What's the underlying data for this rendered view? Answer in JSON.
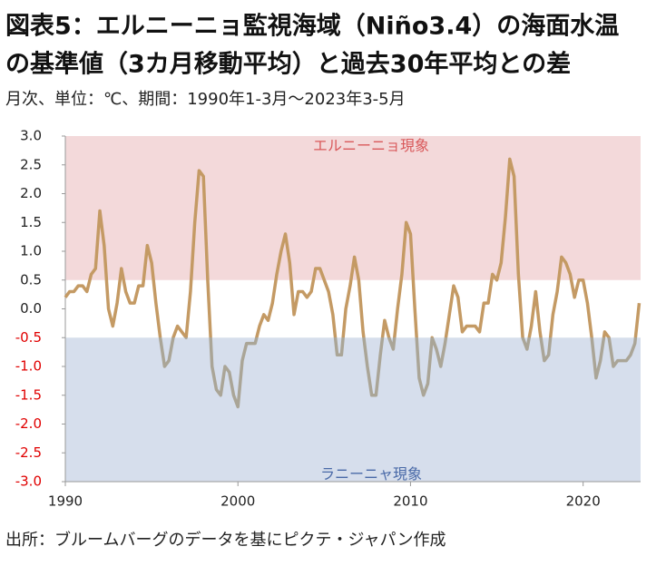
{
  "chart_data": {
    "type": "line",
    "title": [
      "図表5：エルニーニョ監視海域（Niño3.4）の海面水温",
      "の基準値（3カ月移動平均）と過去30年平均との差"
    ],
    "subtitle": "月次、単位：℃、期間：1990年1-3月～2023年3-5月",
    "source": "出所：ブルームバーグのデータを基にピクテ・ジャパン作成",
    "xlim": [
      1990,
      2023.33
    ],
    "xticks": [
      1990,
      2000,
      2010,
      2020
    ],
    "ylim": [
      -3,
      3
    ],
    "yticks": [
      {
        "value": 3,
        "label": "3.0"
      },
      2.5,
      {
        "value": 2,
        "label": "2.0"
      },
      1.5,
      {
        "value": 1,
        "label": "1.0"
      },
      0.5,
      {
        "value": 0,
        "label": "0.0"
      },
      -0.5,
      {
        "value": -1,
        "label": "-1.0"
      },
      -1.5,
      {
        "value": -2,
        "label": "-2.0"
      },
      -2.5,
      {
        "value": -3,
        "label": "-3.0"
      }
    ],
    "negative_tick_color": "#e00000",
    "grid": false,
    "bands": [
      {
        "label": "エルニーニョ現象",
        "from": 0.5,
        "to": 3,
        "color": "#f3d9da",
        "label_color": "#d9595b"
      },
      {
        "label": "ラニーニャ現象",
        "from": -3,
        "to": -0.5,
        "color": "#d6deec",
        "label_color": "#4a6aa8"
      }
    ],
    "line_color": "#c49a64",
    "below_band_color": "#aaa597",
    "x": [
      1990,
      1990.25,
      1990.5,
      1990.75,
      1991,
      1991.25,
      1991.5,
      1991.75,
      1992,
      1992.25,
      1992.5,
      1992.75,
      1993,
      1993.25,
      1993.5,
      1993.75,
      1994,
      1994.25,
      1994.5,
      1994.75,
      1995,
      1995.25,
      1995.5,
      1995.75,
      1996,
      1996.25,
      1996.5,
      1996.75,
      1997,
      1997.25,
      1997.5,
      1997.75,
      1998,
      1998.25,
      1998.5,
      1998.75,
      1999,
      1999.25,
      1999.5,
      1999.75,
      2000,
      2000.25,
      2000.5,
      2000.75,
      2001,
      2001.25,
      2001.5,
      2001.75,
      2002,
      2002.25,
      2002.5,
      2002.75,
      2003,
      2003.25,
      2003.5,
      2003.75,
      2004,
      2004.25,
      2004.5,
      2004.75,
      2005,
      2005.25,
      2005.5,
      2005.75,
      2006,
      2006.25,
      2006.5,
      2006.75,
      2007,
      2007.25,
      2007.5,
      2007.75,
      2008,
      2008.25,
      2008.5,
      2008.75,
      2009,
      2009.25,
      2009.5,
      2009.75,
      2010,
      2010.25,
      2010.5,
      2010.75,
      2011,
      2011.25,
      2011.5,
      2011.75,
      2012,
      2012.25,
      2012.5,
      2012.75,
      2013,
      2013.25,
      2013.5,
      2013.75,
      2014,
      2014.25,
      2014.5,
      2014.75,
      2015,
      2015.25,
      2015.5,
      2015.75,
      2016,
      2016.25,
      2016.5,
      2016.75,
      2017,
      2017.25,
      2017.5,
      2017.75,
      2018,
      2018.25,
      2018.5,
      2018.75,
      2019,
      2019.25,
      2019.5,
      2019.75,
      2020,
      2020.25,
      2020.5,
      2020.75,
      2021,
      2021.25,
      2021.5,
      2021.75,
      2022,
      2022.25,
      2022.5,
      2022.75,
      2023,
      2023.25
    ],
    "values": [
      0.2,
      0.3,
      0.3,
      0.4,
      0.4,
      0.3,
      0.6,
      0.7,
      1.7,
      1.1,
      0.0,
      -0.3,
      0.1,
      0.7,
      0.3,
      0.1,
      0.1,
      0.4,
      0.4,
      1.1,
      0.8,
      0.1,
      -0.5,
      -1.0,
      -0.9,
      -0.5,
      -0.3,
      -0.4,
      -0.5,
      0.3,
      1.5,
      2.4,
      2.3,
      0.5,
      -1.0,
      -1.4,
      -1.5,
      -1.0,
      -1.1,
      -1.5,
      -1.7,
      -0.9,
      -0.6,
      -0.6,
      -0.6,
      -0.3,
      -0.1,
      -0.2,
      0.1,
      0.6,
      1.0,
      1.3,
      0.8,
      -0.1,
      0.3,
      0.3,
      0.2,
      0.3,
      0.7,
      0.7,
      0.5,
      0.3,
      -0.1,
      -0.8,
      -0.8,
      0.0,
      0.4,
      0.9,
      0.5,
      -0.4,
      -1.0,
      -1.5,
      -1.5,
      -0.8,
      -0.2,
      -0.5,
      -0.7,
      0.0,
      0.6,
      1.5,
      1.3,
      0.0,
      -1.2,
      -1.5,
      -1.3,
      -0.5,
      -0.7,
      -1.0,
      -0.6,
      -0.1,
      0.4,
      0.2,
      -0.4,
      -0.3,
      -0.3,
      -0.3,
      -0.4,
      0.1,
      0.1,
      0.6,
      0.5,
      0.8,
      1.6,
      2.6,
      2.3,
      0.6,
      -0.5,
      -0.7,
      -0.3,
      0.3,
      -0.4,
      -0.9,
      -0.8,
      -0.1,
      0.3,
      0.9,
      0.8,
      0.6,
      0.2,
      0.5,
      0.5,
      0.1,
      -0.5,
      -1.2,
      -0.9,
      -0.4,
      -0.5,
      -1.0,
      -0.9,
      -0.9,
      -0.9,
      -0.8,
      -0.6,
      0.1
    ]
  }
}
